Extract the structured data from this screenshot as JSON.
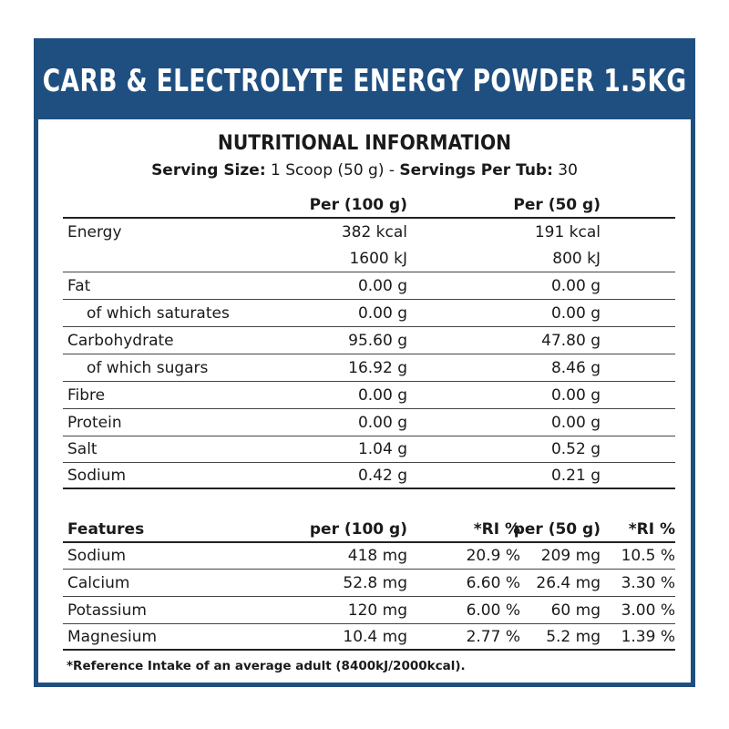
{
  "banner": {
    "title": "CARB & ELECTROLYTE ENERGY POWDER 1.5KG"
  },
  "heading": "NUTRITIONAL INFORMATION",
  "serving": {
    "size_label": "Serving Size:",
    "size_value": "1 Scoop (50 g) -",
    "per_tub_label": "Servings Per Tub:",
    "per_tub_value": "30"
  },
  "nutrition": {
    "col_100": "Per (100 g)",
    "col_50": "Per (50 g)",
    "rows": [
      {
        "label": "Energy",
        "v100": "382 kcal",
        "v50": "191 kcal"
      },
      {
        "label": "",
        "v100": "1600 kJ",
        "v50": "800 kJ"
      },
      {
        "label": "Fat",
        "v100": "0.00 g",
        "v50": "0.00 g"
      },
      {
        "label": "of which saturates",
        "v100": "0.00 g",
        "v50": "0.00 g"
      },
      {
        "label": "Carbohydrate",
        "v100": "95.60 g",
        "v50": "47.80 g"
      },
      {
        "label": "of which sugars",
        "v100": "16.92 g",
        "v50": "8.46 g"
      },
      {
        "label": "Fibre",
        "v100": "0.00 g",
        "v50": "0.00 g"
      },
      {
        "label": "Protein",
        "v100": "0.00 g",
        "v50": "0.00 g"
      },
      {
        "label": "Salt",
        "v100": "1.04 g",
        "v50": "0.52 g"
      },
      {
        "label": "Sodium",
        "v100": "0.42 g",
        "v50": "0.21 g"
      }
    ]
  },
  "features": {
    "headers": [
      "Features",
      "per (100 g)",
      "*RI %",
      "per (50 g)",
      "*RI %"
    ],
    "rows": [
      {
        "label": "Sodium",
        "v100": "418 mg",
        "ri100": "20.9 %",
        "v50": "209 mg",
        "ri50": "10.5 %"
      },
      {
        "label": "Calcium",
        "v100": "52.8 mg",
        "ri100": "6.60 %",
        "v50": "26.4 mg",
        "ri50": "3.30 %"
      },
      {
        "label": "Potassium",
        "v100": "120 mg",
        "ri100": "6.00 %",
        "v50": "60 mg",
        "ri50": "3.00 %"
      },
      {
        "label": "Magnesium",
        "v100": "10.4 mg",
        "ri100": "2.77 %",
        "v50": "5.2 mg",
        "ri50": "1.39 %"
      }
    ]
  },
  "footnote": "*Reference Intake of an average adult (8400kJ/2000kcal).",
  "colors": {
    "banner": "#1f4f80",
    "text": "#1a1a1a"
  }
}
